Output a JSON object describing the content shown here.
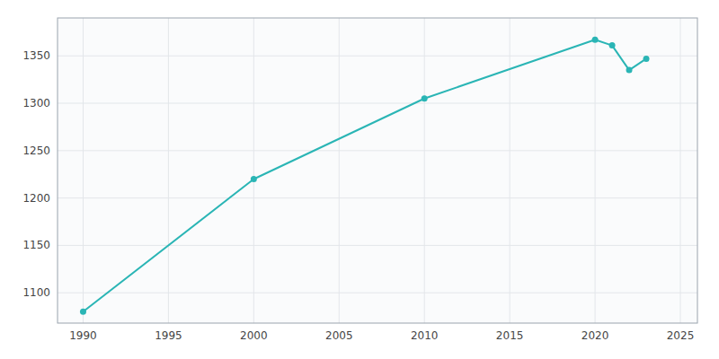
{
  "chart_data": {
    "type": "line",
    "x": [
      1990,
      2000,
      2010,
      2020,
      2021,
      2022,
      2023
    ],
    "values": [
      1080,
      1220,
      1305,
      1367,
      1361,
      1335,
      1347
    ],
    "color": "#2ab5b5",
    "marker": "circle",
    "xlim": [
      1988.5,
      2026
    ],
    "ylim": [
      1068,
      1390
    ],
    "xticks": [
      1990,
      1995,
      2000,
      2005,
      2010,
      2015,
      2020,
      2025
    ],
    "yticks": [
      1100,
      1150,
      1200,
      1250,
      1300,
      1350
    ],
    "grid": true
  }
}
